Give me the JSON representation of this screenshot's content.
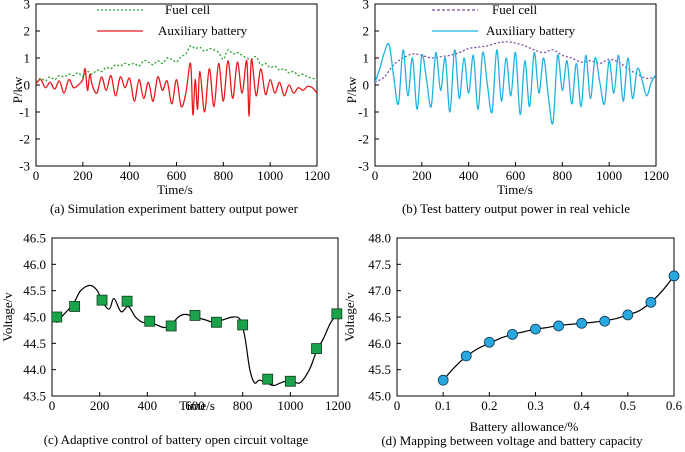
{
  "chart_data": [
    {
      "id": "a",
      "type": "line",
      "caption": "(a) Simulation experiment battery output power",
      "xlabel": "Time/s",
      "ylabel": "P/kw",
      "xlim": [
        0,
        1200
      ],
      "ylim": [
        -3,
        3
      ],
      "xticks": [
        0,
        200,
        400,
        600,
        800,
        1000,
        1200
      ],
      "yticks": [
        -3,
        -2,
        -1,
        0,
        1,
        2,
        3
      ],
      "legend": [
        "Fuel cell",
        "Auxiliary battery"
      ],
      "series": [
        {
          "name": "Fuel cell",
          "color": "#2ca02c",
          "style": "dotted",
          "x": [
            0,
            20,
            40,
            60,
            80,
            100,
            120,
            140,
            160,
            180,
            200,
            220,
            240,
            260,
            280,
            300,
            320,
            340,
            360,
            380,
            400,
            420,
            440,
            460,
            480,
            500,
            520,
            540,
            560,
            580,
            600,
            620,
            640,
            660,
            680,
            700,
            720,
            740,
            760,
            780,
            800,
            820,
            840,
            860,
            880,
            900,
            920,
            940,
            960,
            980,
            1000,
            1020,
            1040,
            1060,
            1080,
            1100,
            1120,
            1140,
            1160,
            1180,
            1200
          ],
          "y": [
            0.1,
            0.25,
            0.15,
            0.3,
            0.2,
            0.35,
            0.3,
            0.4,
            0.35,
            0.45,
            0.3,
            0.5,
            0.4,
            0.55,
            0.5,
            0.65,
            0.6,
            0.75,
            0.7,
            0.8,
            0.75,
            0.8,
            0.7,
            0.9,
            0.85,
            0.75,
            0.9,
            0.8,
            1.0,
            0.95,
            0.85,
            1.05,
            1.15,
            1.45,
            1.35,
            1.4,
            1.25,
            1.35,
            1.3,
            1.2,
            0.95,
            1.3,
            1.15,
            1.2,
            1.1,
            1.0,
            0.95,
            1.05,
            0.75,
            0.8,
            0.65,
            0.7,
            0.55,
            0.6,
            0.45,
            0.5,
            0.35,
            0.4,
            0.3,
            0.25,
            0.2
          ]
        },
        {
          "name": "Auxiliary battery",
          "color": "#e8191c",
          "style": "solid",
          "x": [
            0,
            20,
            40,
            60,
            80,
            100,
            120,
            140,
            160,
            180,
            200,
            210,
            220,
            230,
            240,
            260,
            280,
            300,
            320,
            340,
            360,
            380,
            400,
            420,
            440,
            460,
            480,
            500,
            520,
            540,
            560,
            580,
            600,
            620,
            640,
            660,
            670,
            680,
            690,
            700,
            720,
            740,
            760,
            780,
            800,
            820,
            840,
            860,
            880,
            900,
            910,
            920,
            940,
            960,
            980,
            1000,
            1020,
            1040,
            1060,
            1080,
            1100,
            1120,
            1140,
            1160,
            1180,
            1200
          ],
          "y": [
            0.05,
            0.2,
            -0.1,
            0.1,
            -0.15,
            0.15,
            -0.3,
            0.2,
            -0.1,
            0.0,
            0.2,
            0.6,
            -0.2,
            0.4,
            0.0,
            -0.3,
            0.3,
            -0.2,
            0.35,
            -0.4,
            0.3,
            -0.1,
            0.25,
            -0.6,
            0.2,
            -0.5,
            0.1,
            -0.6,
            0.3,
            -0.2,
            0.15,
            -0.7,
            0.2,
            -0.8,
            -0.3,
            0.8,
            -1.1,
            0.2,
            -0.9,
            0.5,
            -1.0,
            0.6,
            -0.8,
            0.8,
            -0.6,
            0.9,
            -0.5,
            0.85,
            -0.3,
            0.9,
            -1.15,
            0.95,
            -0.4,
            0.6,
            -0.35,
            0.2,
            -0.3,
            0.1,
            -0.4,
            0.0,
            -0.3,
            -0.1,
            -0.2,
            -0.05,
            -0.1,
            -0.3
          ]
        }
      ]
    },
    {
      "id": "b",
      "type": "line",
      "caption": "(b) Test battery output power in real vehicle",
      "xlabel": "Time/s",
      "ylabel": "P/kw",
      "xlim": [
        0,
        1200
      ],
      "ylim": [
        -3,
        3
      ],
      "xticks": [
        0,
        200,
        400,
        600,
        800,
        1000,
        1200
      ],
      "yticks": [
        -3,
        -2,
        -1,
        0,
        1,
        2,
        3
      ],
      "legend": [
        "Fuel cell",
        "Auxiliary battery"
      ],
      "series": [
        {
          "name": "Fuel cell",
          "color": "#7b4fa8",
          "style": "dotted",
          "x": [
            0,
            40,
            80,
            120,
            160,
            200,
            240,
            280,
            320,
            360,
            400,
            440,
            480,
            520,
            560,
            600,
            640,
            680,
            720,
            760,
            800,
            840,
            880,
            920,
            960,
            1000,
            1040,
            1080,
            1120,
            1160,
            1200
          ],
          "y": [
            0.1,
            0.3,
            0.75,
            1.0,
            1.15,
            1.1,
            1.0,
            1.05,
            1.1,
            1.2,
            1.35,
            1.4,
            1.45,
            1.55,
            1.6,
            1.55,
            1.45,
            1.3,
            1.2,
            1.3,
            1.1,
            1.0,
            0.85,
            0.9,
            0.8,
            0.95,
            0.85,
            0.6,
            0.4,
            0.25,
            0.3
          ]
        },
        {
          "name": "Auxiliary battery",
          "color": "#1fb3e0",
          "style": "solid",
          "x": [
            0,
            20,
            40,
            60,
            80,
            100,
            120,
            140,
            160,
            180,
            200,
            220,
            240,
            260,
            280,
            300,
            320,
            340,
            360,
            380,
            400,
            420,
            440,
            460,
            480,
            500,
            520,
            540,
            560,
            580,
            600,
            620,
            640,
            660,
            680,
            700,
            720,
            740,
            760,
            780,
            800,
            820,
            840,
            860,
            880,
            900,
            920,
            940,
            960,
            980,
            1000,
            1020,
            1040,
            1060,
            1080,
            1100,
            1120,
            1140,
            1160,
            1180,
            1200
          ],
          "y": [
            0.1,
            0.6,
            1.2,
            1.5,
            0.3,
            -0.7,
            1.3,
            -0.4,
            1.0,
            -0.9,
            1.1,
            0.2,
            -0.8,
            1.2,
            -0.2,
            1.0,
            -1.0,
            1.3,
            -0.5,
            1.0,
            -0.3,
            1.1,
            -0.9,
            1.2,
            0.0,
            -1.0,
            1.3,
            -0.6,
            1.0,
            -0.4,
            1.2,
            -1.1,
            0.9,
            -0.8,
            1.2,
            -0.3,
            1.0,
            -0.4,
            -1.4,
            1.1,
            -0.2,
            0.9,
            -0.7,
            0.8,
            -0.8,
            1.1,
            -0.5,
            1.0,
            0.1,
            -0.7,
            0.9,
            -0.3,
            1.1,
            -0.6,
            1.0,
            -0.5,
            0.6,
            0.2,
            -0.4,
            0.1,
            0.4
          ]
        }
      ]
    },
    {
      "id": "c",
      "type": "line",
      "caption": "(c) Adaptive control of battery open circuit voltage",
      "xlabel": "Time/s",
      "ylabel": "Voltage/v",
      "xlim": [
        0,
        1200
      ],
      "ylim": [
        43.5,
        46.5
      ],
      "xticks": [
        0,
        200,
        400,
        600,
        800,
        1000,
        1200
      ],
      "yticks": [
        43.5,
        44.0,
        44.5,
        45.0,
        45.5,
        46.0,
        46.5
      ],
      "ytick_labels": [
        "43.5",
        "44.0",
        "44.5",
        "45.0",
        "45.5",
        "46.0",
        "46.5"
      ],
      "curve": {
        "color": "#000000",
        "x": [
          0,
          20,
          40,
          60,
          90,
          120,
          160,
          190,
          210,
          240,
          260,
          290,
          320,
          350,
          380,
          410,
          440,
          470,
          500,
          530,
          560,
          600,
          640,
          680,
          720,
          760,
          790,
          810,
          830,
          850,
          870,
          900,
          930,
          960,
          1000,
          1040,
          1080,
          1110,
          1140,
          1170,
          1200
        ],
        "y": [
          45.0,
          44.9,
          45.0,
          45.1,
          45.25,
          45.5,
          45.6,
          45.5,
          45.3,
          45.15,
          45.35,
          45.1,
          45.2,
          45.0,
          44.9,
          44.9,
          44.85,
          44.8,
          44.85,
          45.0,
          45.05,
          45.0,
          44.95,
          44.9,
          44.95,
          45.0,
          44.95,
          44.6,
          44.0,
          43.75,
          43.8,
          43.75,
          43.7,
          43.75,
          43.8,
          43.75,
          44.0,
          44.35,
          44.6,
          44.9,
          45.05
        ]
      },
      "markers": {
        "shape": "square",
        "color": "#1aa34a",
        "x": [
          20,
          95,
          210,
          315,
          410,
          500,
          600,
          690,
          800,
          905,
          1000,
          1110,
          1195
        ],
        "y": [
          45.0,
          45.2,
          45.32,
          45.3,
          44.92,
          44.83,
          45.03,
          44.9,
          44.85,
          43.82,
          43.78,
          44.4,
          45.06
        ]
      }
    },
    {
      "id": "d",
      "type": "scatter",
      "caption": "(d) Mapping between voltage and battery capacity",
      "xlabel": "Battery allowance/%",
      "ylabel": "Voltage/v",
      "xlim": [
        0,
        0.6
      ],
      "ylim": [
        45.0,
        48.0
      ],
      "xticks": [
        0,
        0.1,
        0.2,
        0.3,
        0.4,
        0.5,
        0.6
      ],
      "xtick_labels": [
        "0",
        "0.1",
        "0.2",
        "0.3",
        "0.4",
        "0.5",
        "0.6"
      ],
      "yticks": [
        45.0,
        45.5,
        46.0,
        46.5,
        47.0,
        47.5,
        48.0
      ],
      "ytick_labels": [
        "45.0",
        "45.5",
        "46.0",
        "46.5",
        "47.0",
        "47.5",
        "48.0"
      ],
      "curve": {
        "color": "#000000",
        "x": [
          0.1,
          0.125,
          0.15,
          0.175,
          0.2,
          0.225,
          0.25,
          0.275,
          0.3,
          0.325,
          0.35,
          0.375,
          0.4,
          0.425,
          0.45,
          0.475,
          0.5,
          0.525,
          0.55,
          0.575,
          0.6
        ],
        "y": [
          45.3,
          45.55,
          45.75,
          45.9,
          46.0,
          46.1,
          46.17,
          46.22,
          46.27,
          46.3,
          46.34,
          46.36,
          46.38,
          46.4,
          46.43,
          46.47,
          46.54,
          46.62,
          46.78,
          47.0,
          47.28
        ]
      },
      "markers": {
        "shape": "circle",
        "color": "#29a8e0",
        "x": [
          0.1,
          0.15,
          0.2,
          0.25,
          0.3,
          0.35,
          0.4,
          0.45,
          0.5,
          0.55,
          0.6
        ],
        "y": [
          45.3,
          45.76,
          46.02,
          46.17,
          46.27,
          46.33,
          46.38,
          46.42,
          46.54,
          46.78,
          47.28
        ]
      }
    }
  ]
}
